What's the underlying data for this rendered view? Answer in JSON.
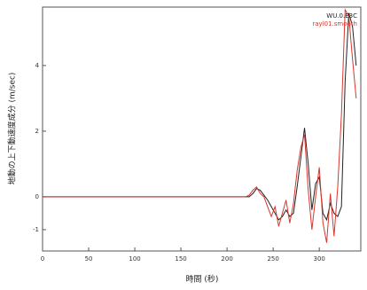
{
  "chart_data": {
    "type": "line",
    "x_label": "時間 (秒)",
    "y_label": "地動の上下動速度成分 (m/sec)",
    "x": [
      0,
      220,
      224,
      228,
      232,
      236,
      240,
      244,
      248,
      252,
      256,
      260,
      264,
      268,
      272,
      276,
      280,
      284,
      288,
      292,
      296,
      300,
      304,
      308,
      312,
      316,
      320,
      324,
      328,
      332,
      336,
      340
    ],
    "series": [
      {
        "name": "WU.0.E3C",
        "color": "#222222",
        "values": [
          0,
          0,
          0,
          0.1,
          0.25,
          0.2,
          0.05,
          -0.1,
          -0.3,
          -0.5,
          -0.7,
          -0.6,
          -0.4,
          -0.6,
          -0.5,
          0.3,
          1.2,
          2.1,
          1.0,
          -0.4,
          0.4,
          0.6,
          -0.5,
          -0.7,
          -0.2,
          -0.5,
          -0.6,
          -0.3,
          3.5,
          5.6,
          5.2,
          4.0
        ]
      },
      {
        "name": "rayl01.smooth",
        "color": "#d9362f",
        "values": [
          0,
          0,
          0.05,
          0.2,
          0.3,
          0.1,
          0.0,
          -0.3,
          -0.6,
          -0.3,
          -0.9,
          -0.5,
          -0.1,
          -0.8,
          -0.2,
          0.8,
          1.5,
          1.9,
          0.2,
          -1.0,
          0.0,
          0.9,
          -0.8,
          -1.4,
          0.1,
          -1.2,
          0.3,
          2.5,
          5.7,
          5.5,
          4.2,
          3.0
        ]
      }
    ],
    "xlim": [
      0,
      345
    ],
    "xticks": [
      0,
      50,
      100,
      150,
      200,
      250,
      300
    ],
    "ylim": [
      -1.65,
      5.78
    ],
    "yticks": [
      -1,
      0,
      2,
      4
    ],
    "legend": "top-right"
  }
}
